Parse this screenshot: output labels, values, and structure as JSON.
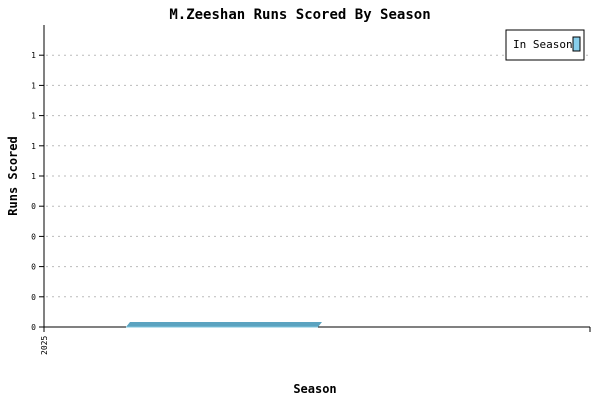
{
  "chart_data": {
    "type": "bar",
    "title": "M.Zeeshan Runs Scored By Season",
    "xlabel": "Season",
    "ylabel": "Runs Scored",
    "categories": [
      "2025"
    ],
    "series": [
      {
        "name": "In Season",
        "values": [
          0
        ]
      }
    ],
    "ytick_labels": [
      "0",
      "0",
      "0",
      "0",
      "0",
      "1",
      "1",
      "1",
      "1",
      "1"
    ],
    "ylim": [
      0,
      1
    ],
    "grid": true,
    "legend": "top-right",
    "colors": {
      "bar": "#5ba3c0",
      "bar_top": "#7fc4dd",
      "legend_swatch": "#87ceeb"
    }
  }
}
